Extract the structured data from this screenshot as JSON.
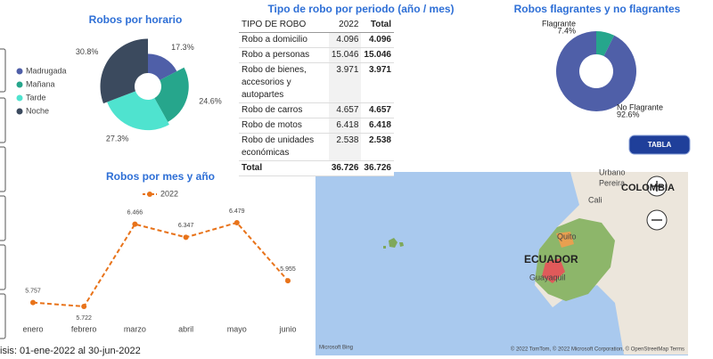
{
  "chart_data": [
    {
      "type": "rose",
      "title": "Robos por horario",
      "categories": [
        "Madrugada",
        "Mañana",
        "Tarde",
        "Noche"
      ],
      "values": [
        17.3,
        24.6,
        27.3,
        30.8
      ],
      "value_labels": [
        "17.3%",
        "24.6%",
        "27.3%",
        "30.8%"
      ],
      "colors": [
        "#4f5fa8",
        "#26a68c",
        "#4fe3cf",
        "#3b4a5e"
      ],
      "legend": "left"
    },
    {
      "type": "donut",
      "title": "Robos flagrantes y no flagrantes",
      "categories": [
        "Flagrante",
        "No Flagrante"
      ],
      "values": [
        7.4,
        92.6
      ],
      "value_labels": [
        "7.4%",
        "92.6%"
      ],
      "colors": [
        "#26a68c",
        "#4f5fa8"
      ]
    },
    {
      "type": "line",
      "title": "Robos por mes y año",
      "categories": [
        "enero",
        "febrero",
        "marzo",
        "abril",
        "mayo",
        "junio"
      ],
      "series": [
        {
          "name": "2022",
          "color": "#e8731a",
          "values": [
            5757,
            5722,
            6466,
            6347,
            6479,
            5955
          ],
          "value_labels": [
            "5.757",
            "5.722",
            "6.466",
            "6.347",
            "6.479",
            "5.955"
          ]
        }
      ],
      "legend": "top"
    }
  ],
  "table": {
    "title": "Tipo de robo por periodo (año / mes)",
    "header": [
      "TIPO DE ROBO",
      "2022",
      "Total"
    ],
    "rows": [
      [
        "Robo a domicilio",
        "4.096",
        "4.096"
      ],
      [
        "Robo a personas",
        "15.046",
        "15.046"
      ],
      [
        "Robo de bienes, accesorios y autopartes",
        "3.971",
        "3.971"
      ],
      [
        "Robo de carros",
        "4.657",
        "4.657"
      ],
      [
        "Robo de motos",
        "6.418",
        "6.418"
      ],
      [
        "Robo de unidades económicas",
        "2.538",
        "2.538"
      ]
    ],
    "total": [
      "Total",
      "36.726",
      "36.726"
    ]
  },
  "button": "TABLA",
  "map": {
    "labels": [
      "Urbano",
      "Pereira",
      "COLOMBIA",
      "Cali",
      "Quito",
      "ECUADOR",
      "Guayaquil"
    ],
    "attribution": "Microsoft Bing",
    "copyright": "© 2022 TomTom, © 2022 Microsoft Corporation, © OpenStreetMap Terms"
  },
  "footer": "isis: 01-ene-2022 al 30-jun-2022"
}
